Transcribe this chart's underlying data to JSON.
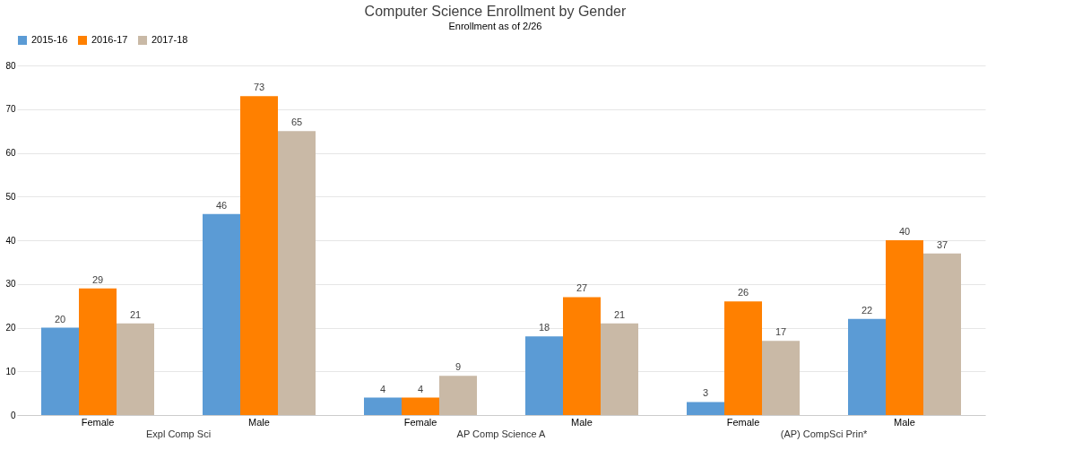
{
  "chart_data": {
    "type": "bar",
    "title": "Computer Science Enrollment by Gender",
    "subtitle": "Enrollment as of 2/26",
    "categories": [
      "Female",
      "Male",
      "Female",
      "Male",
      "Female",
      "Male"
    ],
    "annotations": [
      "Expl Comp Sci",
      "AP Comp Science A",
      "(AP) CompSci Prin*"
    ],
    "series": [
      {
        "name": "2015-16",
        "color": "#5b9bd5",
        "values": [
          20,
          46,
          4,
          18,
          3,
          22
        ]
      },
      {
        "name": "2016-17",
        "color": "#ff8000",
        "values": [
          29,
          73,
          4,
          27,
          26,
          40
        ]
      },
      {
        "name": "2017-18",
        "color": "#c9b9a6",
        "values": [
          21,
          65,
          9,
          21,
          17,
          37
        ]
      }
    ],
    "ylim": [
      0,
      80
    ],
    "yticks": [
      0,
      10,
      20,
      30,
      40,
      50,
      60,
      70,
      80
    ],
    "grid": "y",
    "legend": "top",
    "data_labels": true
  }
}
